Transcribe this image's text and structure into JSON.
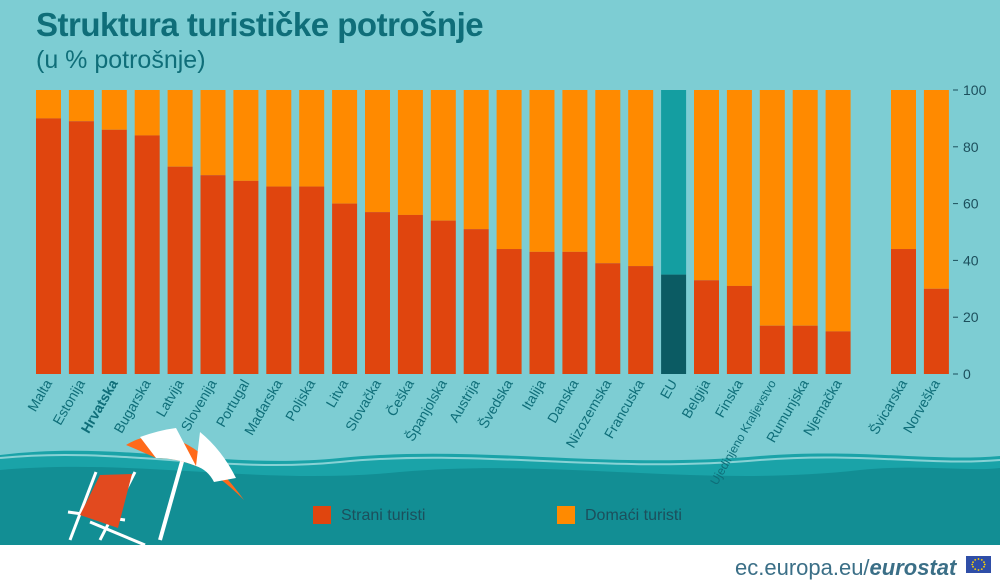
{
  "title": "Struktura turističke potrošnje",
  "subtitle": "(u % potrošnje)",
  "footer": {
    "site": "ec.europa.eu/",
    "brand": "eurostat"
  },
  "colors": {
    "foreign": "#e0450e",
    "domestic": "#ff8a00",
    "eu_foreign": "#0b5b63",
    "eu_domestic": "#149ea1",
    "text": "#0f6e79"
  },
  "icons": [
    "beach-umbrella-icon",
    "deck-chair-icon",
    "eu-flag-icon"
  ],
  "legend": [
    {
      "label": "Strani turisti",
      "color": "#e0450e"
    },
    {
      "label": "Domaći turisti",
      "color": "#ff8a00"
    }
  ],
  "chart_data": {
    "type": "bar",
    "stacked": true,
    "categories": [
      "Malta",
      "Estonija",
      "Hrvatska",
      "Bugarska",
      "Latvija",
      "Slovenija",
      "Portugal",
      "Mađarska",
      "Poljska",
      "Litva",
      "Slovačka",
      "Češka",
      "Španjolska",
      "Austrija",
      "Švedska",
      "Italija",
      "Danska",
      "Nizozemska",
      "Francuska",
      "EU",
      "Belgija",
      "Finska",
      "Ujedinjeno Kraljevstvo",
      "Rumunjska",
      "Njemačka",
      "Švicarska",
      "Norveška"
    ],
    "highlight_bold": "Hrvatska",
    "highlight_color": "EU",
    "series": [
      {
        "name": "Strani turisti",
        "values": [
          90,
          89,
          86,
          84,
          73,
          70,
          68,
          66,
          66,
          60,
          57,
          56,
          54,
          51,
          44,
          43,
          43,
          39,
          38,
          35,
          33,
          31,
          17,
          17,
          15,
          44,
          30
        ]
      },
      {
        "name": "Domaći turisti",
        "values": [
          10,
          11,
          14,
          16,
          27,
          30,
          32,
          34,
          34,
          40,
          43,
          44,
          46,
          49,
          56,
          57,
          57,
          61,
          62,
          65,
          67,
          69,
          83,
          83,
          85,
          56,
          70
        ]
      }
    ],
    "yticks": [
      0,
      20,
      40,
      60,
      80,
      100
    ],
    "ylim": [
      0,
      100
    ],
    "y_axis_side": "right",
    "legend_position": "bottom"
  }
}
